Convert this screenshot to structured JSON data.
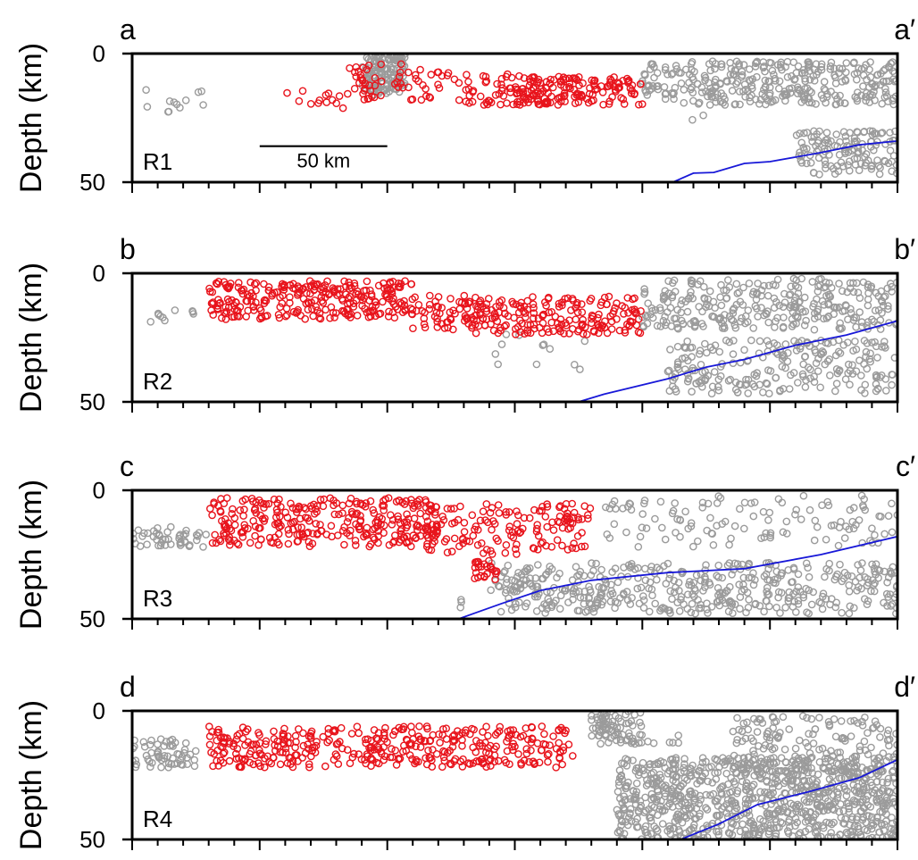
{
  "chart_data": [
    {
      "type": "scatter",
      "panel_label": "R1",
      "start_label": "a",
      "end_label": "a′",
      "ylabel": "Depth (km)",
      "y_ticks": [
        0,
        50
      ],
      "ylim": [
        0,
        50
      ],
      "x_range_km": [
        0,
        300
      ],
      "x_tick_interval_km": 10,
      "x_major_tick_interval_km": 50,
      "scale_bar_label": "50 km",
      "scale_bar_km": [
        50,
        100
      ],
      "scale_bar_depth_km": 36,
      "colors": {
        "red": "#e8141c",
        "gray": "#9b9b9b",
        "blue": "#1818d8"
      },
      "slab_line": [
        [
          212,
          50
        ],
        [
          220,
          46.5
        ],
        [
          228,
          46.2
        ],
        [
          240,
          42.7
        ],
        [
          250,
          42
        ],
        [
          270,
          38.5
        ],
        [
          285,
          35.5
        ],
        [
          300,
          34
        ]
      ],
      "red_clusters": [
        {
          "x": [
            60,
            85
          ],
          "depth": [
            13,
            22
          ],
          "n": 14
        },
        {
          "x": [
            85,
            125
          ],
          "depth": [
            4,
            18
          ],
          "n": 60
        },
        {
          "x": [
            125,
            160
          ],
          "depth": [
            8,
            20
          ],
          "n": 55
        },
        {
          "x": [
            150,
            200
          ],
          "depth": [
            9,
            20
          ],
          "n": 150
        }
      ],
      "gray_clusters": [
        {
          "x": [
            5,
            28
          ],
          "depth": [
            14,
            23
          ],
          "n": 12
        },
        {
          "x": [
            90,
            107
          ],
          "depth": [
            0,
            16
          ],
          "n": 150
        },
        {
          "x": [
            200,
            300
          ],
          "depth": [
            3,
            20
          ],
          "n": 340
        },
        {
          "x": [
            260,
            300
          ],
          "depth": [
            30,
            47
          ],
          "n": 130
        },
        {
          "x": [
            215,
            225
          ],
          "depth": [
            24,
            27
          ],
          "n": 2
        }
      ]
    },
    {
      "type": "scatter",
      "panel_label": "R2",
      "start_label": "b",
      "end_label": "b′",
      "ylabel": "Depth (km)",
      "y_ticks": [
        0,
        50
      ],
      "ylim": [
        0,
        50
      ],
      "x_range_km": [
        0,
        300
      ],
      "x_tick_interval_km": 10,
      "x_major_tick_interval_km": 50,
      "colors": {
        "red": "#e8141c",
        "gray": "#9b9b9b",
        "blue": "#1818d8"
      },
      "slab_line": [
        [
          175,
          50
        ],
        [
          185,
          47
        ],
        [
          210,
          41
        ],
        [
          225,
          36.5
        ],
        [
          240,
          33.5
        ],
        [
          260,
          28
        ],
        [
          280,
          24
        ],
        [
          300,
          18.5
        ]
      ],
      "red_clusters": [
        {
          "x": [
            30,
            110
          ],
          "depth": [
            3,
            18
          ],
          "n": 280
        },
        {
          "x": [
            110,
            140
          ],
          "depth": [
            8,
            22
          ],
          "n": 50
        },
        {
          "x": [
            130,
            200
          ],
          "depth": [
            9,
            24
          ],
          "n": 200
        }
      ],
      "gray_clusters": [
        {
          "x": [
            5,
            28
          ],
          "depth": [
            14,
            19
          ],
          "n": 10
        },
        {
          "x": [
            200,
            300
          ],
          "depth": [
            2,
            22
          ],
          "n": 300
        },
        {
          "x": [
            140,
            180
          ],
          "depth": [
            22,
            38
          ],
          "n": 12
        },
        {
          "x": [
            210,
            300
          ],
          "depth": [
            26,
            47
          ],
          "n": 230
        }
      ]
    },
    {
      "type": "scatter",
      "panel_label": "R3",
      "start_label": "c",
      "end_label": "c′",
      "ylabel": "Depth (km)",
      "y_ticks": [
        0,
        50
      ],
      "ylim": [
        0,
        50
      ],
      "x_range_km": [
        0,
        300
      ],
      "x_tick_interval_km": 10,
      "x_major_tick_interval_km": 50,
      "colors": {
        "red": "#e8141c",
        "gray": "#9b9b9b",
        "blue": "#1818d8"
      },
      "slab_line": [
        [
          128,
          50
        ],
        [
          135,
          47.5
        ],
        [
          145,
          44
        ],
        [
          160,
          39
        ],
        [
          180,
          35
        ],
        [
          210,
          32
        ],
        [
          240,
          30.5
        ],
        [
          270,
          25
        ],
        [
          300,
          18
        ]
      ],
      "red_clusters": [
        {
          "x": [
            30,
            120
          ],
          "depth": [
            3,
            22
          ],
          "n": 300
        },
        {
          "x": [
            115,
            180
          ],
          "depth": [
            5,
            25
          ],
          "n": 150
        },
        {
          "x": [
            133,
            143
          ],
          "depth": [
            27,
            35
          ],
          "n": 25
        }
      ],
      "gray_clusters": [
        {
          "x": [
            0,
            30
          ],
          "depth": [
            14,
            22
          ],
          "n": 45
        },
        {
          "x": [
            185,
            300
          ],
          "depth": [
            2,
            22
          ],
          "n": 120
        },
        {
          "x": [
            140,
            300
          ],
          "depth": [
            28,
            48
          ],
          "n": 450
        },
        {
          "x": [
            125,
            132
          ],
          "depth": [
            36,
            49
          ],
          "n": 3
        }
      ]
    },
    {
      "type": "scatter",
      "panel_label": "R4",
      "start_label": "d",
      "end_label": "d′",
      "ylabel": "Depth (km)",
      "y_ticks": [
        0,
        50
      ],
      "ylim": [
        0,
        50
      ],
      "x_range_km": [
        0,
        300
      ],
      "x_tick_interval_km": 10,
      "x_major_tick_interval_km": 50,
      "colors": {
        "red": "#e8141c",
        "gray": "#9b9b9b",
        "blue": "#1818d8"
      },
      "slab_line": [
        [
          215,
          50
        ],
        [
          230,
          44
        ],
        [
          245,
          36.5
        ],
        [
          265,
          31.5
        ],
        [
          285,
          26
        ],
        [
          300,
          19
        ]
      ],
      "red_clusters": [
        {
          "x": [
            30,
            170
          ],
          "depth": [
            6,
            22
          ],
          "n": 380
        },
        {
          "x": [
            155,
            175
          ],
          "depth": [
            10,
            18
          ],
          "n": 10
        }
      ],
      "gray_clusters": [
        {
          "x": [
            0,
            25
          ],
          "depth": [
            11,
            22
          ],
          "n": 60
        },
        {
          "x": [
            180,
            200
          ],
          "depth": [
            0,
            13
          ],
          "n": 80
        },
        {
          "x": [
            200,
            222
          ],
          "depth": [
            4,
            13
          ],
          "n": 6
        },
        {
          "x": [
            235,
            300
          ],
          "depth": [
            2,
            26
          ],
          "n": 160
        },
        {
          "x": [
            190,
            300
          ],
          "depth": [
            18,
            50
          ],
          "n": 900
        }
      ]
    }
  ]
}
